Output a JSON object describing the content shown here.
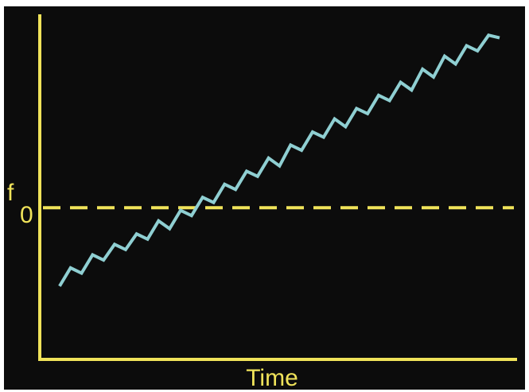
{
  "chart_data": {
    "type": "line",
    "xlabel": "Time",
    "ylabel": "",
    "reference_line": {
      "label_main": "f",
      "label_sub": "0",
      "value": 0,
      "style": "dashed"
    },
    "x": [
      0,
      1,
      2,
      3,
      4,
      5,
      6,
      7,
      8,
      9,
      10,
      11,
      12,
      13,
      14,
      15,
      16,
      17,
      18,
      19,
      20,
      21,
      22,
      23,
      24,
      25,
      26,
      27,
      28,
      29,
      30,
      31,
      32,
      33,
      34,
      35,
      36,
      37,
      38,
      39,
      40
    ],
    "series": [
      {
        "values": [
          -30,
          -23,
          -25,
          -18,
          -20,
          -14,
          -16,
          -10,
          -12,
          -5,
          -8,
          -1,
          -3,
          4,
          2,
          9,
          7,
          14,
          12,
          19,
          16,
          24,
          22,
          29,
          27,
          34,
          31,
          38,
          36,
          43,
          41,
          48,
          45,
          53,
          50,
          58,
          55,
          62,
          60,
          66,
          65
        ]
      }
    ],
    "ylim": [
      -58,
      74
    ],
    "xlim": [
      -1.8,
      40
    ],
    "grid": false,
    "colors": {
      "background": "#0c0c0c",
      "axes": "#f0e35a",
      "reference_line": "#f0e35a",
      "series": "#8fcfd2",
      "labels": "#f0e35a"
    }
  }
}
